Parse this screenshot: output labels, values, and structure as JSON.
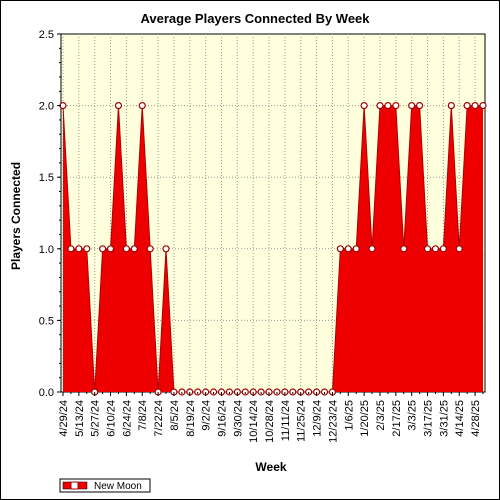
{
  "chart_data": {
    "type": "area",
    "title": "Average Players Connected By Week",
    "xlabel": "Week",
    "ylabel": "Players Connected",
    "ylim": [
      0,
      2.5
    ],
    "yticks": [
      "0.0",
      "0.5",
      "1.0",
      "1.5",
      "2.0",
      "2.5"
    ],
    "x_tick_labels": [
      "4/29/24",
      "5/13/24",
      "5/27/24",
      "6/10/24",
      "6/24/24",
      "7/8/24",
      "7/22/24",
      "8/5/24",
      "8/19/24",
      "9/2/24",
      "9/16/24",
      "9/30/24",
      "10/14/24",
      "10/28/24",
      "11/11/24",
      "11/25/24",
      "12/9/24",
      "12/23/24",
      "1/6/25",
      "1/20/25",
      "2/3/25",
      "2/17/25",
      "3/3/25",
      "3/17/25",
      "3/31/25",
      "4/14/25",
      "4/28/25"
    ],
    "legend_position": "bottom-left",
    "grid": true,
    "colors": {
      "fill": "#ee0000",
      "marker": "#a00000",
      "plot_bg": "#ffffdd"
    },
    "series": [
      {
        "name": "New Moon",
        "values": [
          2,
          1,
          1,
          1,
          0,
          1,
          1,
          2,
          1,
          1,
          2,
          1,
          0,
          1,
          0,
          0,
          0,
          0,
          0,
          0,
          0,
          0,
          0,
          0,
          0,
          0,
          0,
          0,
          0,
          0,
          0,
          0,
          0,
          0,
          0,
          1,
          1,
          1,
          2,
          1,
          2,
          2,
          2,
          1,
          2,
          2,
          1,
          1,
          1,
          2,
          1,
          2,
          2,
          2
        ]
      }
    ]
  }
}
